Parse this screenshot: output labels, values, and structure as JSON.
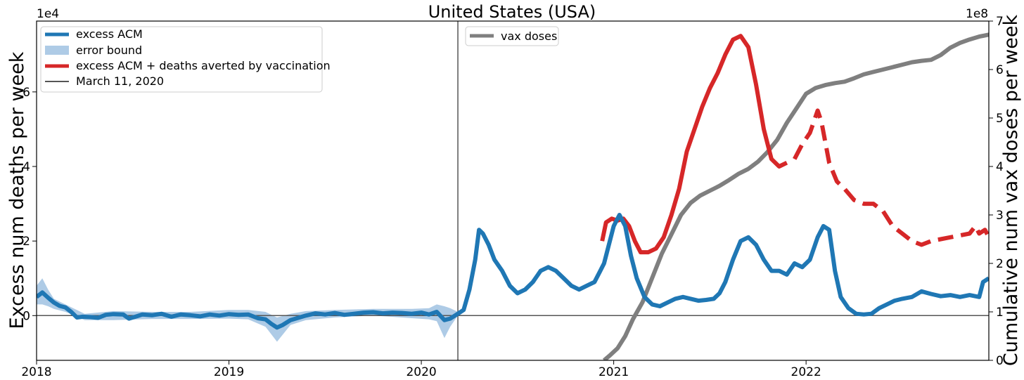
{
  "chart_data": {
    "type": "line",
    "title": "United States (USA)",
    "ylabel_left": "Excess num deaths per week",
    "ylabel_right": "Cumulative num vax doses per week",
    "left_axis_offset": "1e4",
    "right_axis_offset": "1e8",
    "xlim": [
      2018.0,
      2022.95
    ],
    "ylim_left": [
      -12000,
      79000
    ],
    "ylim_right": [
      0,
      7.0
    ],
    "x_ticks": [
      2018,
      2019,
      2020,
      2021,
      2022
    ],
    "x_tick_labels": [
      "2018",
      "2019",
      "2020",
      "2021",
      "2022"
    ],
    "y_left_ticks": [
      0,
      20000,
      40000,
      60000
    ],
    "y_left_tick_labels": [
      "0",
      "2",
      "4",
      "6"
    ],
    "y_right_ticks": [
      0,
      1,
      2,
      3,
      4,
      5,
      6,
      7
    ],
    "y_right_tick_labels": [
      "0",
      "1",
      "2",
      "3",
      "4",
      "5",
      "6",
      "7"
    ],
    "hline_y": 0,
    "vline_x": 2020.19,
    "legend_left": [
      "excess ACM",
      "error bound",
      "excess ACM + deaths averted by vaccination",
      "March 11, 2020"
    ],
    "legend_right": [
      "vax doses"
    ],
    "colors": {
      "excess_acm": "#1f77b4",
      "error_bound": "#aecbe6",
      "averted": "#d62728",
      "vax": "#7f7f7f",
      "vline": "#555555"
    },
    "series": [
      {
        "name": "excess ACM",
        "axis": "left",
        "points": [
          [
            2018.0,
            5000
          ],
          [
            2018.03,
            6200
          ],
          [
            2018.06,
            4800
          ],
          [
            2018.09,
            3500
          ],
          [
            2018.12,
            2600
          ],
          [
            2018.15,
            2200
          ],
          [
            2018.18,
            1000
          ],
          [
            2018.21,
            -500
          ],
          [
            2018.24,
            -300
          ],
          [
            2018.28,
            -400
          ],
          [
            2018.32,
            -600
          ],
          [
            2018.36,
            200
          ],
          [
            2018.4,
            400
          ],
          [
            2018.45,
            300
          ],
          [
            2018.48,
            -800
          ],
          [
            2018.52,
            -200
          ],
          [
            2018.55,
            300
          ],
          [
            2018.6,
            100
          ],
          [
            2018.65,
            500
          ],
          [
            2018.7,
            -300
          ],
          [
            2018.75,
            300
          ],
          [
            2018.8,
            100
          ],
          [
            2018.85,
            -200
          ],
          [
            2018.9,
            300
          ],
          [
            2018.95,
            0
          ],
          [
            2019.0,
            400
          ],
          [
            2019.05,
            200
          ],
          [
            2019.1,
            300
          ],
          [
            2019.15,
            -700
          ],
          [
            2019.19,
            -1000
          ],
          [
            2019.22,
            -2200
          ],
          [
            2019.25,
            -3200
          ],
          [
            2019.28,
            -2500
          ],
          [
            2019.32,
            -1200
          ],
          [
            2019.36,
            -600
          ],
          [
            2019.4,
            0
          ],
          [
            2019.45,
            600
          ],
          [
            2019.5,
            300
          ],
          [
            2019.55,
            700
          ],
          [
            2019.6,
            200
          ],
          [
            2019.65,
            500
          ],
          [
            2019.7,
            800
          ],
          [
            2019.75,
            900
          ],
          [
            2019.8,
            600
          ],
          [
            2019.85,
            800
          ],
          [
            2019.9,
            700
          ],
          [
            2019.95,
            500
          ],
          [
            2020.0,
            800
          ],
          [
            2020.04,
            300
          ],
          [
            2020.08,
            1000
          ],
          [
            2020.12,
            -1200
          ],
          [
            2020.15,
            -800
          ],
          [
            2020.19,
            500
          ],
          [
            2020.22,
            1500
          ],
          [
            2020.25,
            7000
          ],
          [
            2020.28,
            15000
          ],
          [
            2020.3,
            23000
          ],
          [
            2020.32,
            22000
          ],
          [
            2020.35,
            19000
          ],
          [
            2020.38,
            15000
          ],
          [
            2020.42,
            12000
          ],
          [
            2020.46,
            8000
          ],
          [
            2020.5,
            6000
          ],
          [
            2020.54,
            7000
          ],
          [
            2020.58,
            9000
          ],
          [
            2020.62,
            12000
          ],
          [
            2020.66,
            13000
          ],
          [
            2020.7,
            12000
          ],
          [
            2020.74,
            10000
          ],
          [
            2020.78,
            8000
          ],
          [
            2020.82,
            7000
          ],
          [
            2020.86,
            8000
          ],
          [
            2020.9,
            9000
          ],
          [
            2020.93,
            12000
          ],
          [
            2020.95,
            14000
          ],
          [
            2020.98,
            20000
          ],
          [
            2021.0,
            24000
          ],
          [
            2021.03,
            27000
          ],
          [
            2021.06,
            24000
          ],
          [
            2021.09,
            16000
          ],
          [
            2021.12,
            10000
          ],
          [
            2021.16,
            5000
          ],
          [
            2021.2,
            3000
          ],
          [
            2021.24,
            2500
          ],
          [
            2021.28,
            3500
          ],
          [
            2021.32,
            4500
          ],
          [
            2021.36,
            5000
          ],
          [
            2021.4,
            4500
          ],
          [
            2021.44,
            4000
          ],
          [
            2021.48,
            4200
          ],
          [
            2021.52,
            4500
          ],
          [
            2021.55,
            6000
          ],
          [
            2021.58,
            9000
          ],
          [
            2021.62,
            15000
          ],
          [
            2021.66,
            20000
          ],
          [
            2021.7,
            21000
          ],
          [
            2021.74,
            19000
          ],
          [
            2021.78,
            15000
          ],
          [
            2021.82,
            12000
          ],
          [
            2021.86,
            12000
          ],
          [
            2021.9,
            11000
          ],
          [
            2021.94,
            14000
          ],
          [
            2021.98,
            13000
          ],
          [
            2022.02,
            15000
          ],
          [
            2022.06,
            21000
          ],
          [
            2022.09,
            24000
          ],
          [
            2022.12,
            23000
          ],
          [
            2022.15,
            12000
          ],
          [
            2022.18,
            5000
          ],
          [
            2022.22,
            2000
          ],
          [
            2022.26,
            500
          ],
          [
            2022.3,
            300
          ],
          [
            2022.34,
            500
          ],
          [
            2022.38,
            2000
          ],
          [
            2022.42,
            3000
          ],
          [
            2022.46,
            4000
          ],
          [
            2022.5,
            4500
          ],
          [
            2022.55,
            5000
          ],
          [
            2022.6,
            6500
          ],
          [
            2022.65,
            5800
          ],
          [
            2022.7,
            5200
          ],
          [
            2022.75,
            5500
          ],
          [
            2022.8,
            5000
          ],
          [
            2022.85,
            5500
          ],
          [
            2022.9,
            5000
          ],
          [
            2022.92,
            9000
          ],
          [
            2022.95,
            10000
          ]
        ]
      },
      {
        "name": "excess ACM + deaths averted by vaccination",
        "axis": "left",
        "points": [
          [
            2020.94,
            20000
          ],
          [
            2020.96,
            25000
          ],
          [
            2020.99,
            26000
          ],
          [
            2021.02,
            25500
          ],
          [
            2021.05,
            26000
          ],
          [
            2021.08,
            24000
          ],
          [
            2021.11,
            20000
          ],
          [
            2021.14,
            17000
          ],
          [
            2021.18,
            17000
          ],
          [
            2021.22,
            18000
          ],
          [
            2021.26,
            21000
          ],
          [
            2021.3,
            27000
          ],
          [
            2021.34,
            34000
          ],
          [
            2021.38,
            44000
          ],
          [
            2021.42,
            50000
          ],
          [
            2021.46,
            56000
          ],
          [
            2021.5,
            61000
          ],
          [
            2021.54,
            65000
          ],
          [
            2021.58,
            70000
          ],
          [
            2021.62,
            74000
          ],
          [
            2021.66,
            75000
          ],
          [
            2021.7,
            72000
          ],
          [
            2021.74,
            62000
          ],
          [
            2021.78,
            50000
          ],
          [
            2021.82,
            42000
          ],
          [
            2021.86,
            40000
          ],
          [
            2021.9,
            41000
          ],
          [
            2021.94,
            42000
          ],
          [
            2021.98,
            46000
          ],
          [
            2022.02,
            49000
          ],
          [
            2022.06,
            55000
          ],
          [
            2022.08,
            52000
          ],
          [
            2022.12,
            41000
          ],
          [
            2022.16,
            36000
          ],
          [
            2022.2,
            34000
          ],
          [
            2022.25,
            31000
          ],
          [
            2022.3,
            30000
          ],
          [
            2022.35,
            30000
          ],
          [
            2022.4,
            28000
          ],
          [
            2022.45,
            24000
          ],
          [
            2022.5,
            22000
          ],
          [
            2022.55,
            20000
          ],
          [
            2022.6,
            19000
          ],
          [
            2022.65,
            20000
          ],
          [
            2022.7,
            20500
          ],
          [
            2022.75,
            21000
          ],
          [
            2022.8,
            21500
          ],
          [
            2022.85,
            22000
          ],
          [
            2022.88,
            24000
          ],
          [
            2022.9,
            22000
          ],
          [
            2022.93,
            23000
          ],
          [
            2022.95,
            21000
          ]
        ]
      },
      {
        "name": "vax doses",
        "axis": "right",
        "points": [
          [
            2020.95,
            0
          ],
          [
            2020.98,
            0.1
          ],
          [
            2021.02,
            0.25
          ],
          [
            2021.06,
            0.5
          ],
          [
            2021.1,
            0.85
          ],
          [
            2021.15,
            1.2
          ],
          [
            2021.2,
            1.7
          ],
          [
            2021.25,
            2.2
          ],
          [
            2021.3,
            2.6
          ],
          [
            2021.35,
            3.0
          ],
          [
            2021.4,
            3.25
          ],
          [
            2021.45,
            3.4
          ],
          [
            2021.5,
            3.5
          ],
          [
            2021.55,
            3.6
          ],
          [
            2021.6,
            3.72
          ],
          [
            2021.65,
            3.85
          ],
          [
            2021.7,
            3.95
          ],
          [
            2021.75,
            4.1
          ],
          [
            2021.8,
            4.3
          ],
          [
            2021.85,
            4.55
          ],
          [
            2021.9,
            4.9
          ],
          [
            2021.95,
            5.2
          ],
          [
            2022.0,
            5.5
          ],
          [
            2022.05,
            5.62
          ],
          [
            2022.1,
            5.68
          ],
          [
            2022.15,
            5.72
          ],
          [
            2022.2,
            5.75
          ],
          [
            2022.25,
            5.82
          ],
          [
            2022.3,
            5.9
          ],
          [
            2022.35,
            5.95
          ],
          [
            2022.4,
            6.0
          ],
          [
            2022.45,
            6.05
          ],
          [
            2022.5,
            6.1
          ],
          [
            2022.55,
            6.15
          ],
          [
            2022.6,
            6.18
          ],
          [
            2022.65,
            6.2
          ],
          [
            2022.7,
            6.3
          ],
          [
            2022.75,
            6.45
          ],
          [
            2022.8,
            6.55
          ],
          [
            2022.85,
            6.62
          ],
          [
            2022.9,
            6.68
          ],
          [
            2022.95,
            6.72
          ]
        ]
      }
    ],
    "error_bound": {
      "name": "error bound",
      "axis": "left",
      "upper": [
        [
          2018.0,
          8000
        ],
        [
          2018.03,
          10000
        ],
        [
          2018.06,
          7000
        ],
        [
          2018.09,
          4500
        ],
        [
          2018.15,
          3000
        ],
        [
          2018.25,
          500
        ],
        [
          2018.4,
          1200
        ],
        [
          2018.6,
          1000
        ],
        [
          2018.8,
          1000
        ],
        [
          2019.0,
          1500
        ],
        [
          2019.1,
          1500
        ],
        [
          2019.19,
          1000
        ],
        [
          2019.25,
          -500
        ],
        [
          2019.32,
          500
        ],
        [
          2019.4,
          1200
        ],
        [
          2019.55,
          1500
        ],
        [
          2019.75,
          1800
        ],
        [
          2019.95,
          1800
        ],
        [
          2020.04,
          2000
        ],
        [
          2020.08,
          3000
        ],
        [
          2020.12,
          2500
        ],
        [
          2020.15,
          2000
        ],
        [
          2020.19,
          1000
        ]
      ],
      "lower": [
        [
          2020.19,
          0
        ],
        [
          2020.15,
          -3000
        ],
        [
          2020.12,
          -6000
        ],
        [
          2020.08,
          -1500
        ],
        [
          2020.04,
          -1000
        ],
        [
          2019.95,
          -700
        ],
        [
          2019.75,
          0
        ],
        [
          2019.55,
          -500
        ],
        [
          2019.4,
          -1200
        ],
        [
          2019.32,
          -2500
        ],
        [
          2019.25,
          -7000
        ],
        [
          2019.19,
          -3000
        ],
        [
          2019.1,
          -1000
        ],
        [
          2019.0,
          -800
        ],
        [
          2018.8,
          -900
        ],
        [
          2018.6,
          -900
        ],
        [
          2018.4,
          -1200
        ],
        [
          2018.25,
          -1200
        ],
        [
          2018.15,
          1000
        ],
        [
          2018.09,
          1800
        ],
        [
          2018.06,
          2500
        ],
        [
          2018.03,
          3000
        ],
        [
          2018.0,
          3000
        ]
      ]
    }
  }
}
